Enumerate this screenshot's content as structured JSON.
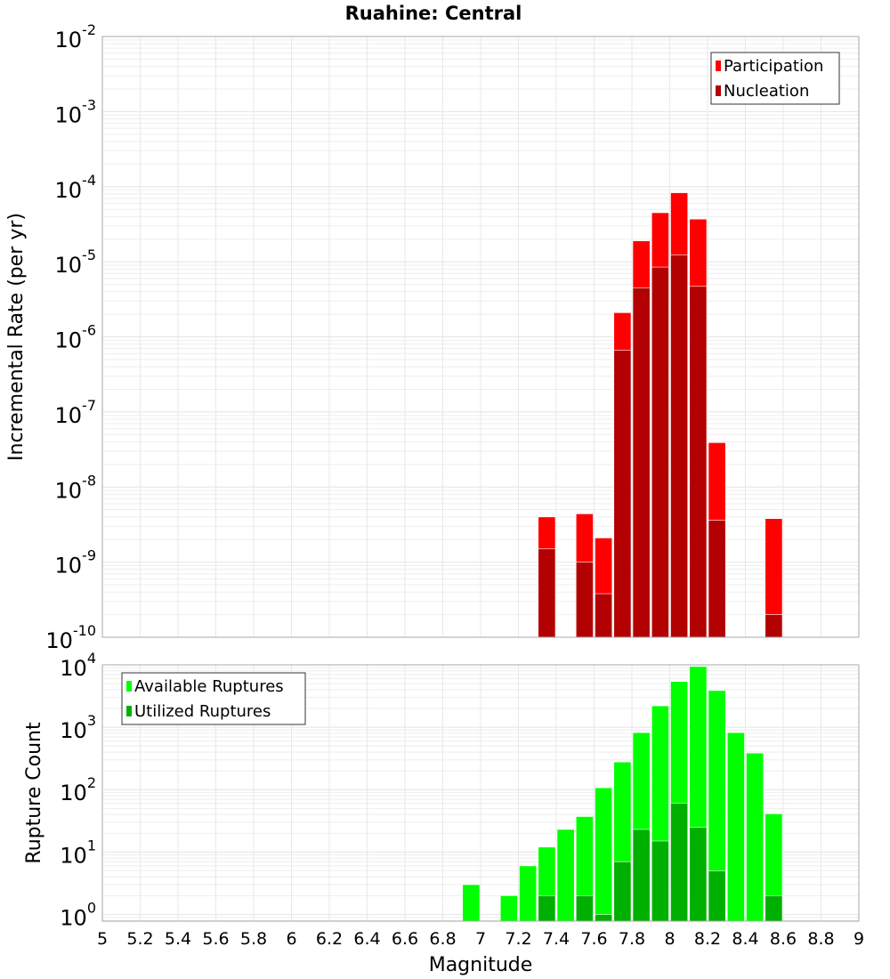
{
  "chart_data": [
    {
      "type": "bar",
      "title": "Ruahine: Central",
      "xlabel": "Magnitude",
      "ylabel": "Incremental Rate (per yr)",
      "yscale": "log",
      "ylim": [
        1e-10,
        0.01
      ],
      "xlim": [
        5,
        9
      ],
      "bin_width": 0.1,
      "ytick_exponents": [
        "-10",
        "-9",
        "-8",
        "-7",
        "-6",
        "-5",
        "-4",
        "-3",
        "-2"
      ],
      "legend_position": "top-right",
      "x": [
        7.35,
        7.55,
        7.65,
        7.75,
        7.85,
        7.95,
        8.05,
        8.15,
        8.25,
        8.55
      ],
      "series": [
        {
          "name": "Participation",
          "color": "#ff0000",
          "values": [
            4e-09,
            4.4e-09,
            2.1e-09,
            2.1e-06,
            1.9e-05,
            4.5e-05,
            8.3e-05,
            3.7e-05,
            3.9e-08,
            3.8e-09
          ]
        },
        {
          "name": "Nucleation",
          "color": "#b30000",
          "values": [
            1.5e-09,
            1e-09,
            3.8e-10,
            6.6e-07,
            4.5e-06,
            8.5e-06,
            1.24e-05,
            4.7e-06,
            3.6e-09,
            2e-10
          ]
        }
      ],
      "grid": true
    },
    {
      "type": "bar",
      "xlabel": "Magnitude",
      "ylabel": "Rupture Count",
      "yscale": "log",
      "ylim": [
        0.78,
        10000
      ],
      "xlim": [
        5,
        9
      ],
      "bin_width": 0.1,
      "ytick_exponents": [
        "0",
        "1",
        "2",
        "3",
        "4"
      ],
      "xticks": [
        "5",
        "5.2",
        "5.4",
        "5.6",
        "5.8",
        "6",
        "6.2",
        "6.4",
        "6.6",
        "6.8",
        "7",
        "7.2",
        "7.4",
        "7.6",
        "7.8",
        "8",
        "8.2",
        "8.4",
        "8.6",
        "8.8",
        "9"
      ],
      "legend_position": "top-left",
      "x": [
        6.95,
        7.15,
        7.25,
        7.35,
        7.45,
        7.55,
        7.65,
        7.75,
        7.85,
        7.95,
        8.05,
        8.15,
        8.25,
        8.35,
        8.45,
        8.55
      ],
      "series": [
        {
          "name": "Available Ruptures",
          "color": "#00ff00",
          "values": [
            3,
            2,
            6,
            12,
            23,
            37,
            107,
            277,
            820,
            2200,
            5400,
            9400,
            3870,
            820,
            385,
            41
          ]
        },
        {
          "name": "Utilized Ruptures",
          "color": "#00b000",
          "values": [
            0,
            0,
            0,
            2,
            0,
            2,
            1,
            7,
            23,
            15,
            61,
            25,
            5,
            0,
            0,
            2
          ]
        }
      ],
      "grid": true
    }
  ]
}
